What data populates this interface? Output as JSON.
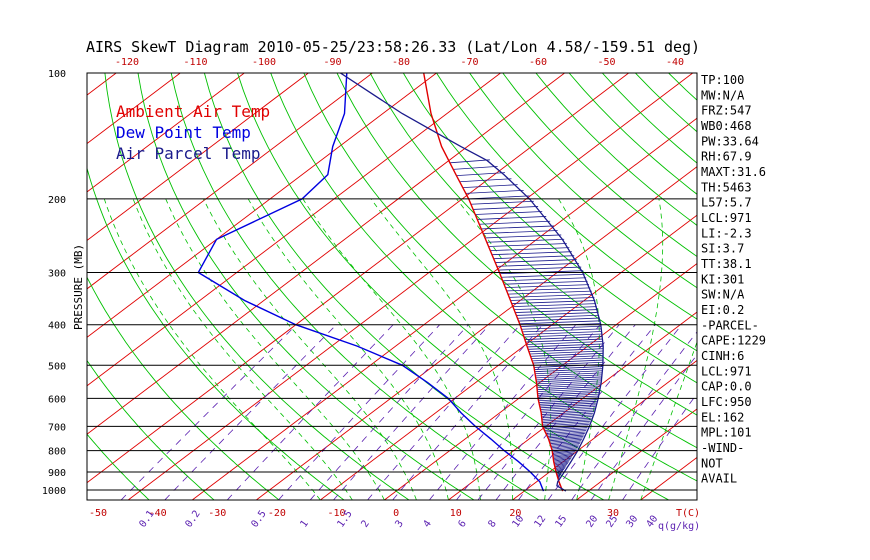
{
  "chart_data": {
    "type": "line",
    "title": "AIRS SkewT Diagram 2010-05-25/23:58:26.33 (Lat/Lon 4.58/-159.51 deg)",
    "ylabel": "PRESSURE (MB)",
    "xlabel": "T(C)",
    "mixing_label": "q(g/kg)",
    "pressure_ticks": [
      100,
      200,
      300,
      400,
      500,
      600,
      700,
      800,
      900,
      1000
    ],
    "top_temp_ticks": [
      -120,
      -110,
      -100,
      -90,
      -80,
      -70,
      -60,
      -50,
      -40
    ],
    "bottom_temp_ticks": [
      -50,
      -40,
      -30,
      -20,
      -10,
      0,
      10,
      20,
      30
    ],
    "mixing_ratio_labels": [
      "0.1",
      "0.2",
      "0.5",
      "1",
      "1.5",
      "2",
      "3",
      "4",
      "6",
      "8",
      "10",
      "12",
      "15",
      "20",
      "25",
      "30",
      "40"
    ],
    "legend": [
      {
        "label": "Ambient Air Temp",
        "color": "#e00000"
      },
      {
        "label": "Dew Point Temp",
        "color": "#0000e0"
      },
      {
        "label": "Air Parcel Temp",
        "color": "#1b1b8c"
      }
    ],
    "series": [
      {
        "name": "Ambient Air Temp",
        "points": [
          [
            1000,
            26
          ],
          [
            950,
            23.5
          ],
          [
            900,
            21
          ],
          [
            850,
            18.5
          ],
          [
            800,
            16
          ],
          [
            750,
            13
          ],
          [
            700,
            9.5
          ],
          [
            650,
            6.5
          ],
          [
            600,
            3
          ],
          [
            550,
            -0.5
          ],
          [
            500,
            -4.5
          ],
          [
            450,
            -9.5
          ],
          [
            400,
            -15
          ],
          [
            350,
            -21.5
          ],
          [
            300,
            -29
          ],
          [
            250,
            -38
          ],
          [
            200,
            -49
          ],
          [
            175,
            -56
          ],
          [
            150,
            -64
          ],
          [
            125,
            -72.5
          ],
          [
            100,
            -82
          ]
        ]
      },
      {
        "name": "Dew Point Temp",
        "points": [
          [
            1000,
            23
          ],
          [
            950,
            20.5
          ],
          [
            900,
            17
          ],
          [
            850,
            13
          ],
          [
            800,
            8.5
          ],
          [
            750,
            4
          ],
          [
            700,
            -1
          ],
          [
            650,
            -6
          ],
          [
            600,
            -11
          ],
          [
            550,
            -17.5
          ],
          [
            500,
            -25
          ],
          [
            450,
            -36
          ],
          [
            400,
            -50
          ],
          [
            350,
            -63
          ],
          [
            300,
            -76
          ],
          [
            250,
            -80
          ],
          [
            200,
            -75
          ],
          [
            175,
            -76
          ],
          [
            150,
            -81
          ],
          [
            125,
            -86
          ],
          [
            100,
            -94
          ]
        ]
      },
      {
        "name": "Air Parcel Temp",
        "points": [
          [
            1000,
            26.5
          ],
          [
            971,
            24
          ],
          [
            950,
            23.3
          ],
          [
            900,
            22.3
          ],
          [
            850,
            21.2
          ],
          [
            800,
            20
          ],
          [
            750,
            18.5
          ],
          [
            700,
            16.8
          ],
          [
            650,
            14.8
          ],
          [
            600,
            12.4
          ],
          [
            550,
            9.6
          ],
          [
            500,
            6.3
          ],
          [
            450,
            2.4
          ],
          [
            400,
            -2.4
          ],
          [
            350,
            -8.4
          ],
          [
            300,
            -16
          ],
          [
            250,
            -26
          ],
          [
            200,
            -39.5
          ],
          [
            175,
            -48.5
          ],
          [
            162,
            -54
          ],
          [
            150,
            -61
          ],
          [
            125,
            -77
          ],
          [
            100,
            -95
          ]
        ]
      }
    ],
    "cape_shading": {
      "from_pressure": 950,
      "to_pressure": 162
    }
  },
  "stats": [
    "TP:100",
    "MW:N/A",
    "FRZ:547",
    "WB0:468",
    "PW:33.64",
    "RH:67.9",
    "MAXT:31.6",
    "TH:5463",
    "L57:5.7",
    "LCL:971",
    "LI:-2.3",
    "SI:3.7",
    "TT:38.1",
    "KI:301",
    "SW:N/A",
    "EI:0.2",
    "-PARCEL-",
    "CAPE:1229",
    "CINH:6",
    "LCL:971",
    "CAP:0.0",
    "LFC:950",
    "EL:162",
    "MPL:101",
    "-WIND-",
    "NOT",
    "AVAIL"
  ],
  "colors": {
    "isotherm": "#e00000",
    "dry_adiabat": "#00c000",
    "moist_adiabat": "#00c000",
    "mixing_ratio": "#5a1fb0",
    "isobar": "#000000",
    "hatch": "#1b1b8c"
  }
}
